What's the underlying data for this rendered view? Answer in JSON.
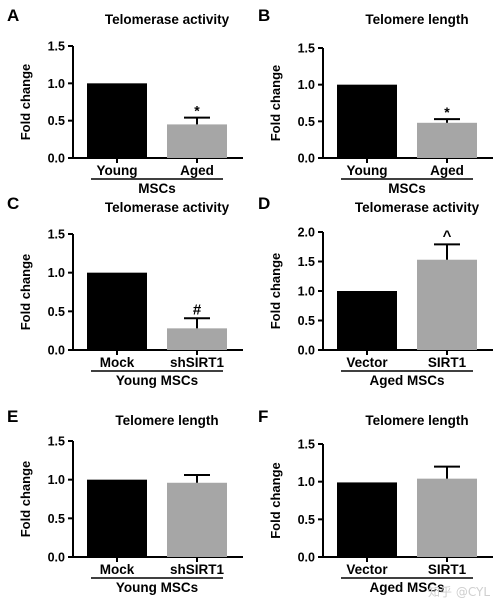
{
  "colors": {
    "bar_primary": "#000000",
    "bar_secondary": "#a6a6a6",
    "axis": "#000000"
  },
  "watermark": "知乎 @CYL",
  "chart_data": [
    {
      "panel": "A",
      "type": "bar",
      "title": "Telomerase activity",
      "categories": [
        "Young",
        "Aged"
      ],
      "values": [
        1.0,
        0.45
      ],
      "errors": [
        0,
        0.09
      ],
      "annotations": [
        "",
        "*"
      ],
      "ylabel": "Fold change",
      "group_label": "MSCs",
      "ylim": [
        0,
        1.5
      ],
      "yticks": [
        "0.0",
        "0.5",
        "1.0",
        "1.5"
      ],
      "grid": false
    },
    {
      "panel": "B",
      "type": "bar",
      "title": "Telomere length",
      "categories": [
        "Young",
        "Aged"
      ],
      "values": [
        1.0,
        0.48
      ],
      "errors": [
        0,
        0.05
      ],
      "annotations": [
        "",
        "*"
      ],
      "ylabel": "Fold change",
      "group_label": "MSCs",
      "ylim": [
        0,
        1.5
      ],
      "yticks": [
        "0.0",
        "0.5",
        "1.0",
        "1.5"
      ],
      "grid": false
    },
    {
      "panel": "C",
      "type": "bar",
      "title": "Telomerase activity",
      "categories": [
        "Mock",
        "shSIRT1"
      ],
      "values": [
        1.0,
        0.28
      ],
      "errors": [
        0,
        0.13
      ],
      "annotations": [
        "",
        "#"
      ],
      "ylabel": "Fold change",
      "group_label": "Young MSCs",
      "ylim": [
        0,
        1.5
      ],
      "yticks": [
        "0.0",
        "0.5",
        "1.0",
        "1.5"
      ],
      "grid": false
    },
    {
      "panel": "D",
      "type": "bar",
      "title": "Telomerase activity",
      "categories": [
        "Vector",
        "SIRT1"
      ],
      "values": [
        1.0,
        1.53
      ],
      "errors": [
        0,
        0.26
      ],
      "annotations": [
        "",
        "^"
      ],
      "ylabel": "Fold change",
      "group_label": "Aged MSCs",
      "ylim": [
        0,
        2.0
      ],
      "yticks": [
        "0.0",
        "0.5",
        "1.0",
        "1.5",
        "2.0"
      ],
      "grid": false
    },
    {
      "panel": "E",
      "type": "bar",
      "title": "Telomere length",
      "categories": [
        "Mock",
        "shSIRT1"
      ],
      "values": [
        1.0,
        0.96
      ],
      "errors": [
        0,
        0.1
      ],
      "annotations": [
        "",
        ""
      ],
      "ylabel": "Fold change",
      "group_label": "Young MSCs",
      "ylim": [
        0,
        1.5
      ],
      "yticks": [
        "0.0",
        "0.5",
        "1.0",
        "1.5"
      ],
      "grid": false
    },
    {
      "panel": "F",
      "type": "bar",
      "title": "Telomere length",
      "categories": [
        "Vector",
        "SIRT1"
      ],
      "values": [
        0.99,
        1.04
      ],
      "errors": [
        0,
        0.16
      ],
      "annotations": [
        "",
        ""
      ],
      "ylabel": "Fold change",
      "group_label": "Aged MSCs",
      "ylim": [
        0,
        1.5
      ],
      "yticks": [
        "0.0",
        "0.5",
        "1.0",
        "1.5"
      ],
      "grid": false
    }
  ]
}
